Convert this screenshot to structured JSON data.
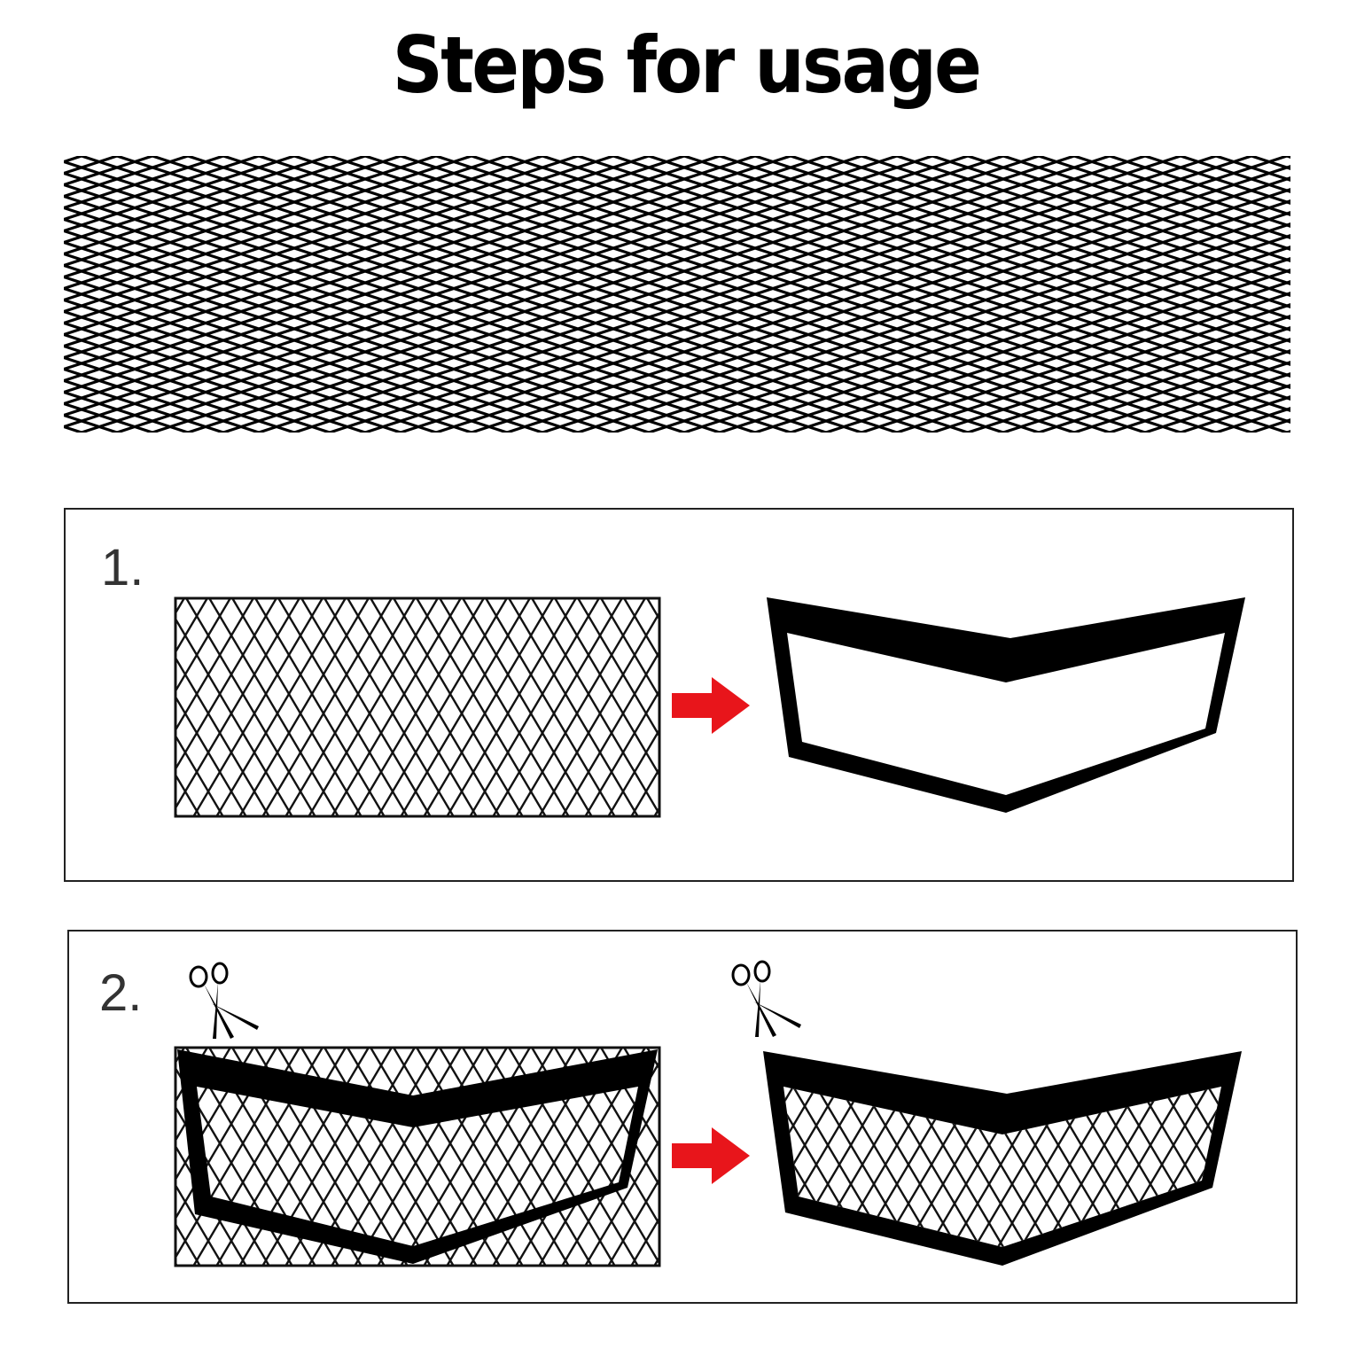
{
  "title": "Steps for usage",
  "colors": {
    "ink": "#000000",
    "arrow": "#e8151b",
    "border": "#222222"
  },
  "steps": [
    {
      "number": "1."
    },
    {
      "number": "2."
    }
  ],
  "icons": [
    "scissors-icon",
    "arrow-right-icon"
  ]
}
